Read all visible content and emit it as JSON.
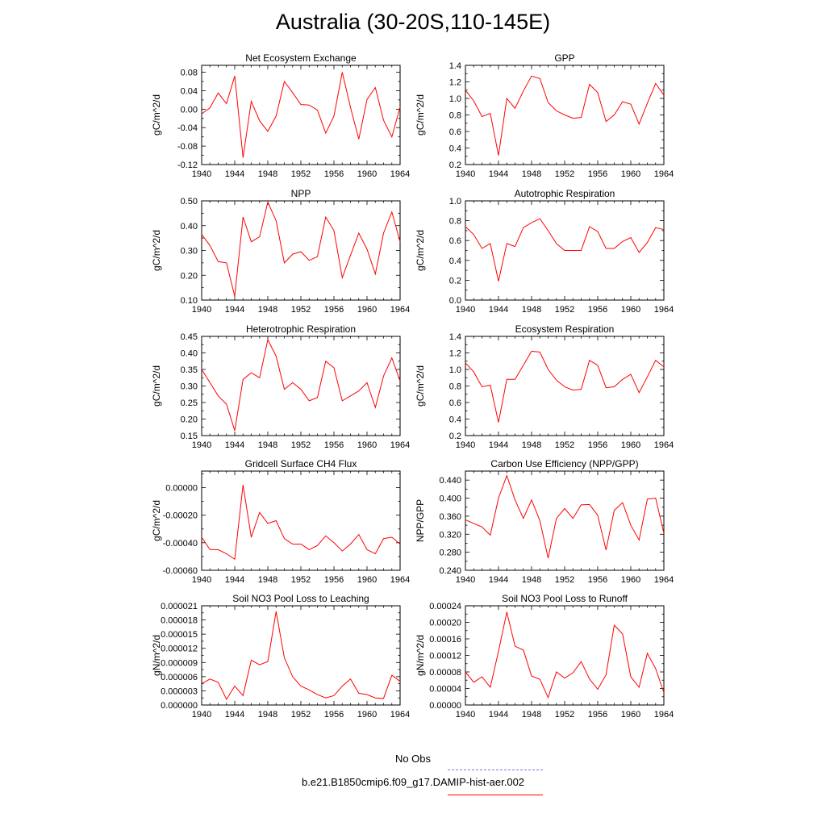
{
  "title": "Australia (30-20S,110-145E)",
  "colors": {
    "model": "#ff0000",
    "obs": "#7777dd",
    "axis": "#000000"
  },
  "legend": {
    "obs_label": "No Obs",
    "model_label": "b.e21.B1850cmip6.f09_g17.DAMIP-hist-aer.002"
  },
  "chart_data": [
    {
      "type": "line",
      "title": "Net Ecosystem Exchange",
      "ylabel": "gC/m^2/d",
      "x": [
        1940,
        1941,
        1942,
        1943,
        1944,
        1945,
        1946,
        1947,
        1948,
        1949,
        1950,
        1951,
        1952,
        1953,
        1954,
        1955,
        1956,
        1957,
        1958,
        1959,
        1960,
        1961,
        1962,
        1963,
        1964
      ],
      "values": [
        -0.01,
        0.003,
        0.035,
        0.012,
        0.072,
        -0.105,
        0.017,
        -0.025,
        -0.048,
        -0.015,
        0.06,
        0.036,
        0.01,
        0.009,
        -0.002,
        -0.052,
        -0.015,
        0.08,
        0.004,
        -0.065,
        0.021,
        0.047,
        -0.024,
        -0.06,
        0.005
      ],
      "xlim": [
        1940,
        1964
      ],
      "ylim": [
        -0.12,
        0.095
      ],
      "xticks": [
        "1940",
        "1944",
        "1948",
        "1952",
        "1956",
        "1960",
        "1964"
      ],
      "yticks": [
        "-0.12",
        "-0.08",
        "-0.04",
        "0.00",
        "0.04",
        "0.08"
      ]
    },
    {
      "type": "line",
      "title": "GPP",
      "ylabel": "gC/m^2/d",
      "x": [
        1940,
        1941,
        1942,
        1943,
        1944,
        1945,
        1946,
        1947,
        1948,
        1949,
        1950,
        1951,
        1952,
        1953,
        1954,
        1955,
        1956,
        1957,
        1958,
        1959,
        1960,
        1961,
        1962,
        1963,
        1964
      ],
      "values": [
        1.1,
        0.97,
        0.78,
        0.82,
        0.31,
        1.0,
        0.88,
        1.09,
        1.27,
        1.24,
        0.95,
        0.85,
        0.8,
        0.76,
        0.77,
        1.17,
        1.07,
        0.72,
        0.8,
        0.96,
        0.93,
        0.69,
        0.94,
        1.18,
        1.04
      ],
      "xlim": [
        1940,
        1964
      ],
      "ylim": [
        0.2,
        1.4
      ],
      "xticks": [
        "1940",
        "1944",
        "1948",
        "1952",
        "1956",
        "1960",
        "1964"
      ],
      "yticks": [
        "0.2",
        "0.4",
        "0.6",
        "0.8",
        "1.0",
        "1.2",
        "1.4"
      ]
    },
    {
      "type": "line",
      "title": "NPP",
      "ylabel": "gC/m^2/d",
      "x": [
        1940,
        1941,
        1942,
        1943,
        1944,
        1945,
        1946,
        1947,
        1948,
        1949,
        1950,
        1951,
        1952,
        1953,
        1954,
        1955,
        1956,
        1957,
        1958,
        1959,
        1960,
        1961,
        1962,
        1963,
        1964
      ],
      "values": [
        0.365,
        0.32,
        0.255,
        0.25,
        0.115,
        0.435,
        0.335,
        0.355,
        0.495,
        0.42,
        0.25,
        0.285,
        0.295,
        0.26,
        0.275,
        0.435,
        0.38,
        0.19,
        0.28,
        0.37,
        0.305,
        0.205,
        0.37,
        0.455,
        0.335
      ],
      "xlim": [
        1940,
        1964
      ],
      "ylim": [
        0.1,
        0.5
      ],
      "xticks": [
        "1940",
        "1944",
        "1948",
        "1952",
        "1956",
        "1960",
        "1964"
      ],
      "yticks": [
        "0.10",
        "0.20",
        "0.30",
        "0.40",
        "0.50"
      ]
    },
    {
      "type": "line",
      "title": "Autotrophic Respiration",
      "ylabel": "gC/m^2/d",
      "x": [
        1940,
        1941,
        1942,
        1943,
        1944,
        1945,
        1946,
        1947,
        1948,
        1949,
        1950,
        1951,
        1952,
        1953,
        1954,
        1955,
        1956,
        1957,
        1958,
        1959,
        1960,
        1961,
        1962,
        1963,
        1964
      ],
      "values": [
        0.74,
        0.66,
        0.52,
        0.57,
        0.19,
        0.57,
        0.54,
        0.73,
        0.78,
        0.82,
        0.7,
        0.57,
        0.5,
        0.5,
        0.5,
        0.74,
        0.69,
        0.52,
        0.52,
        0.59,
        0.63,
        0.48,
        0.58,
        0.73,
        0.71
      ],
      "xlim": [
        1940,
        1964
      ],
      "ylim": [
        0.0,
        1.0
      ],
      "xticks": [
        "1940",
        "1944",
        "1948",
        "1952",
        "1956",
        "1960",
        "1964"
      ],
      "yticks": [
        "0.0",
        "0.2",
        "0.4",
        "0.6",
        "0.8",
        "1.0"
      ]
    },
    {
      "type": "line",
      "title": "Heterotrophic Respiration",
      "ylabel": "gC/m^2/d",
      "x": [
        1940,
        1941,
        1942,
        1943,
        1944,
        1945,
        1946,
        1947,
        1948,
        1949,
        1950,
        1951,
        1952,
        1953,
        1954,
        1955,
        1956,
        1957,
        1958,
        1959,
        1960,
        1961,
        1962,
        1963,
        1964
      ],
      "values": [
        0.35,
        0.31,
        0.27,
        0.245,
        0.165,
        0.32,
        0.34,
        0.325,
        0.44,
        0.39,
        0.29,
        0.31,
        0.29,
        0.255,
        0.265,
        0.375,
        0.355,
        0.255,
        0.27,
        0.285,
        0.31,
        0.235,
        0.33,
        0.385,
        0.315
      ],
      "xlim": [
        1940,
        1964
      ],
      "ylim": [
        0.15,
        0.45
      ],
      "xticks": [
        "1940",
        "1944",
        "1948",
        "1952",
        "1956",
        "1960",
        "1964"
      ],
      "yticks": [
        "0.15",
        "0.20",
        "0.25",
        "0.30",
        "0.35",
        "0.40",
        "0.45"
      ]
    },
    {
      "type": "line",
      "title": "Ecosystem Respiration",
      "ylabel": "gC/m^2/d",
      "x": [
        1940,
        1941,
        1942,
        1943,
        1944,
        1945,
        1946,
        1947,
        1948,
        1949,
        1950,
        1951,
        1952,
        1953,
        1954,
        1955,
        1956,
        1957,
        1958,
        1959,
        1960,
        1961,
        1962,
        1963,
        1964
      ],
      "values": [
        1.08,
        0.97,
        0.79,
        0.81,
        0.36,
        0.88,
        0.88,
        1.05,
        1.22,
        1.21,
        1.0,
        0.87,
        0.79,
        0.75,
        0.76,
        1.11,
        1.05,
        0.78,
        0.79,
        0.88,
        0.94,
        0.72,
        0.91,
        1.11,
        1.03
      ],
      "xlim": [
        1940,
        1964
      ],
      "ylim": [
        0.2,
        1.4
      ],
      "xticks": [
        "1940",
        "1944",
        "1948",
        "1952",
        "1956",
        "1960",
        "1964"
      ],
      "yticks": [
        "0.2",
        "0.4",
        "0.6",
        "0.8",
        "1.0",
        "1.2",
        "1.4"
      ]
    },
    {
      "type": "line",
      "title": "Gridcell Surface CH4 Flux",
      "ylabel": "gC/m^2/d",
      "x": [
        1940,
        1941,
        1942,
        1943,
        1944,
        1945,
        1946,
        1947,
        1948,
        1949,
        1950,
        1951,
        1952,
        1953,
        1954,
        1955,
        1956,
        1957,
        1958,
        1959,
        1960,
        1961,
        1962,
        1963,
        1964
      ],
      "values": [
        -0.00036,
        -0.00045,
        -0.00045,
        -0.00048,
        -0.00052,
        2e-05,
        -0.00036,
        -0.00018,
        -0.00026,
        -0.00024,
        -0.00037,
        -0.00041,
        -0.00041,
        -0.00045,
        -0.00042,
        -0.00035,
        -0.0004,
        -0.00046,
        -0.00041,
        -0.00034,
        -0.00045,
        -0.00048,
        -0.00037,
        -0.00036,
        -0.00041
      ],
      "xlim": [
        1940,
        1964
      ],
      "ylim": [
        -0.0006,
        0.00012
      ],
      "xticks": [
        "1940",
        "1944",
        "1948",
        "1952",
        "1956",
        "1960",
        "1964"
      ],
      "yticks": [
        "-0.00060",
        "-0.00040",
        "-0.00020",
        "0.00000"
      ]
    },
    {
      "type": "line",
      "title": "Carbon Use Efficiency (NPP/GPP)",
      "ylabel": "NPP/GPP",
      "x": [
        1940,
        1941,
        1942,
        1943,
        1944,
        1945,
        1946,
        1947,
        1948,
        1949,
        1950,
        1951,
        1952,
        1953,
        1954,
        1955,
        1956,
        1957,
        1958,
        1959,
        1960,
        1961,
        1962,
        1963,
        1964
      ],
      "values": [
        0.352,
        0.344,
        0.336,
        0.318,
        0.4,
        0.45,
        0.396,
        0.355,
        0.396,
        0.35,
        0.267,
        0.355,
        0.377,
        0.355,
        0.385,
        0.386,
        0.362,
        0.285,
        0.373,
        0.39,
        0.34,
        0.307,
        0.398,
        0.4,
        0.322
      ],
      "xlim": [
        1940,
        1964
      ],
      "ylim": [
        0.24,
        0.46
      ],
      "xticks": [
        "1940",
        "1944",
        "1948",
        "1952",
        "1956",
        "1960",
        "1964"
      ],
      "yticks": [
        "0.240",
        "0.280",
        "0.320",
        "0.360",
        "0.400",
        "0.440"
      ]
    },
    {
      "type": "line",
      "title": "Soil NO3 Pool Loss to Leaching",
      "ylabel": "gN/m^2/d",
      "x": [
        1940,
        1941,
        1942,
        1943,
        1944,
        1945,
        1946,
        1947,
        1948,
        1949,
        1950,
        1951,
        1952,
        1953,
        1954,
        1955,
        1956,
        1957,
        1958,
        1959,
        1960,
        1961,
        1962,
        1963,
        1964
      ],
      "values": [
        4.5e-06,
        5.5e-06,
        4.8e-06,
        1.2e-06,
        4e-06,
        2e-06,
        9.5e-06,
        8.5e-06,
        9.2e-06,
        1.98e-05,
        1e-05,
        6e-06,
        4e-06,
        3.2e-06,
        2.2e-06,
        1.5e-06,
        2e-06,
        4e-06,
        5.5e-06,
        2.5e-06,
        2.2e-06,
        1.5e-06,
        1.4e-06,
        6.3e-06,
        5e-06
      ],
      "xlim": [
        1940,
        1964
      ],
      "ylim": [
        0.0,
        2.1e-05
      ],
      "xticks": [
        "1940",
        "1944",
        "1948",
        "1952",
        "1956",
        "1960",
        "1964"
      ],
      "yticks": [
        "0.000000",
        "0.000003",
        "0.000006",
        "0.000009",
        "0.000012",
        "0.000015",
        "0.000018",
        "0.000021"
      ]
    },
    {
      "type": "line",
      "title": "Soil NO3 Pool Loss to Runoff",
      "ylabel": "gN/m^2/d",
      "x": [
        1940,
        1941,
        1942,
        1943,
        1944,
        1945,
        1946,
        1947,
        1948,
        1949,
        1950,
        1951,
        1952,
        1953,
        1954,
        1955,
        1956,
        1957,
        1958,
        1959,
        1960,
        1961,
        1962,
        1963,
        1964
      ],
      "values": [
        8e-05,
        5.5e-05,
        6.8e-05,
        4.3e-05,
        0.00013,
        0.000225,
        0.000142,
        0.000133,
        7e-05,
        6.2e-05,
        1.8e-05,
        8e-05,
        6.5e-05,
        7.8e-05,
        0.000105,
        6.3e-05,
        3.8e-05,
        7.3e-05,
        0.000193,
        0.000172,
        6.8e-05,
        4.3e-05,
        0.000125,
        8.8e-05,
        3e-05
      ],
      "xlim": [
        1940,
        1964
      ],
      "ylim": [
        0.0,
        0.00024
      ],
      "xticks": [
        "1940",
        "1944",
        "1948",
        "1952",
        "1956",
        "1960",
        "1964"
      ],
      "yticks": [
        "0.00000",
        "0.00004",
        "0.00008",
        "0.00012",
        "0.00016",
        "0.00020",
        "0.00024"
      ]
    }
  ]
}
